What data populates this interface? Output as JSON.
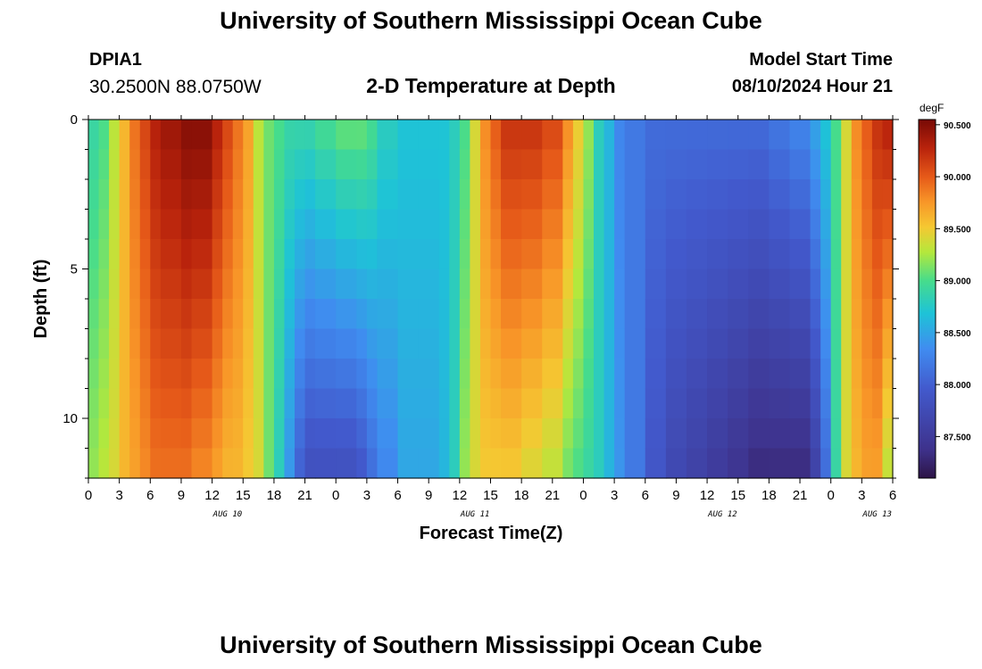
{
  "header": {
    "title": "University of Southern Mississippi Ocean Cube",
    "station": "DPIA1",
    "coords": "30.2500N  88.0750W",
    "subtitle": "2-D Temperature at Depth",
    "model_start_label": "Model Start Time",
    "model_start_value": "08/10/2024 Hour 21"
  },
  "footer": {
    "title": "University of Southern Mississippi Ocean Cube"
  },
  "chart_data": {
    "type": "heatmap",
    "xlabel": "Forecast Time(Z)",
    "ylabel": "Depth (ft)",
    "x_tick_labels": [
      "0",
      "3",
      "6",
      "9",
      "12",
      "15",
      "18",
      "21",
      "0",
      "3",
      "6",
      "9",
      "12",
      "15",
      "18",
      "21",
      "0",
      "3",
      "6",
      "9",
      "12",
      "15",
      "18",
      "21",
      "0",
      "3",
      "6"
    ],
    "day_labels": [
      "AUG 10",
      "AUG 11",
      "AUG 12",
      "AUG 13"
    ],
    "day_label_tick_index": [
      4.5,
      12.5,
      20.5,
      25.5
    ],
    "y_ticks": [
      0,
      5,
      10
    ],
    "ylim": [
      0,
      12
    ],
    "xlim_hours": [
      0,
      78
    ],
    "colorbar": {
      "unit": "degF",
      "min": 87.1,
      "max": 90.55,
      "tick_values": [
        87.5,
        88.0,
        88.5,
        89.0,
        89.5,
        90.0,
        90.5
      ],
      "tick_labels": [
        "87.500",
        "88.000",
        "88.500",
        "89.000",
        "89.500",
        "90.000",
        "90.500"
      ]
    },
    "depth_levels_ft": [
      0,
      1,
      2,
      3,
      4,
      5,
      6,
      7,
      8,
      9,
      10,
      11,
      12
    ],
    "time_key_hours": [
      0,
      1,
      2,
      3,
      4,
      5,
      6,
      7,
      9,
      10,
      12,
      13,
      14,
      15,
      16,
      17,
      18,
      19,
      20,
      21,
      22,
      24,
      26,
      27,
      28,
      30,
      32,
      34,
      35,
      36,
      37,
      38,
      39,
      40,
      42,
      44,
      46,
      47,
      48,
      49,
      50,
      51,
      52,
      54,
      56,
      58,
      60,
      62,
      64,
      66,
      68,
      70,
      71,
      72,
      73,
      74,
      75,
      76,
      77,
      78
    ],
    "surface_degF": [
      88.9,
      89.0,
      89.3,
      89.6,
      89.9,
      90.1,
      90.3,
      90.4,
      90.5,
      90.5,
      90.3,
      90.1,
      89.9,
      89.7,
      89.3,
      89.1,
      89.0,
      88.9,
      88.9,
      88.9,
      89.0,
      89.1,
      89.1,
      89.0,
      88.8,
      88.7,
      88.7,
      88.7,
      88.8,
      89.0,
      89.4,
      89.8,
      90.0,
      90.2,
      90.2,
      90.1,
      89.8,
      89.5,
      89.2,
      88.8,
      88.6,
      88.3,
      88.2,
      88.1,
      88.1,
      88.1,
      88.1,
      88.1,
      88.1,
      88.2,
      88.3,
      88.5,
      88.7,
      89.0,
      89.4,
      89.8,
      90.0,
      90.2,
      90.3,
      90.3
    ],
    "bottom_degF": [
      89.2,
      89.3,
      89.4,
      89.6,
      89.7,
      89.8,
      89.9,
      89.9,
      89.9,
      89.8,
      89.7,
      89.6,
      89.6,
      89.5,
      89.4,
      89.1,
      88.8,
      88.4,
      88.0,
      87.8,
      87.8,
      87.8,
      87.9,
      88.1,
      88.3,
      88.5,
      88.5,
      88.6,
      88.8,
      89.2,
      89.4,
      89.5,
      89.5,
      89.5,
      89.4,
      89.3,
      89.1,
      89.0,
      88.9,
      88.8,
      88.6,
      88.4,
      88.2,
      87.9,
      87.7,
      87.6,
      87.5,
      87.4,
      87.3,
      87.3,
      87.3,
      87.6,
      88.1,
      88.9,
      89.4,
      89.6,
      89.7,
      89.7,
      89.3,
      88.9
    ]
  }
}
